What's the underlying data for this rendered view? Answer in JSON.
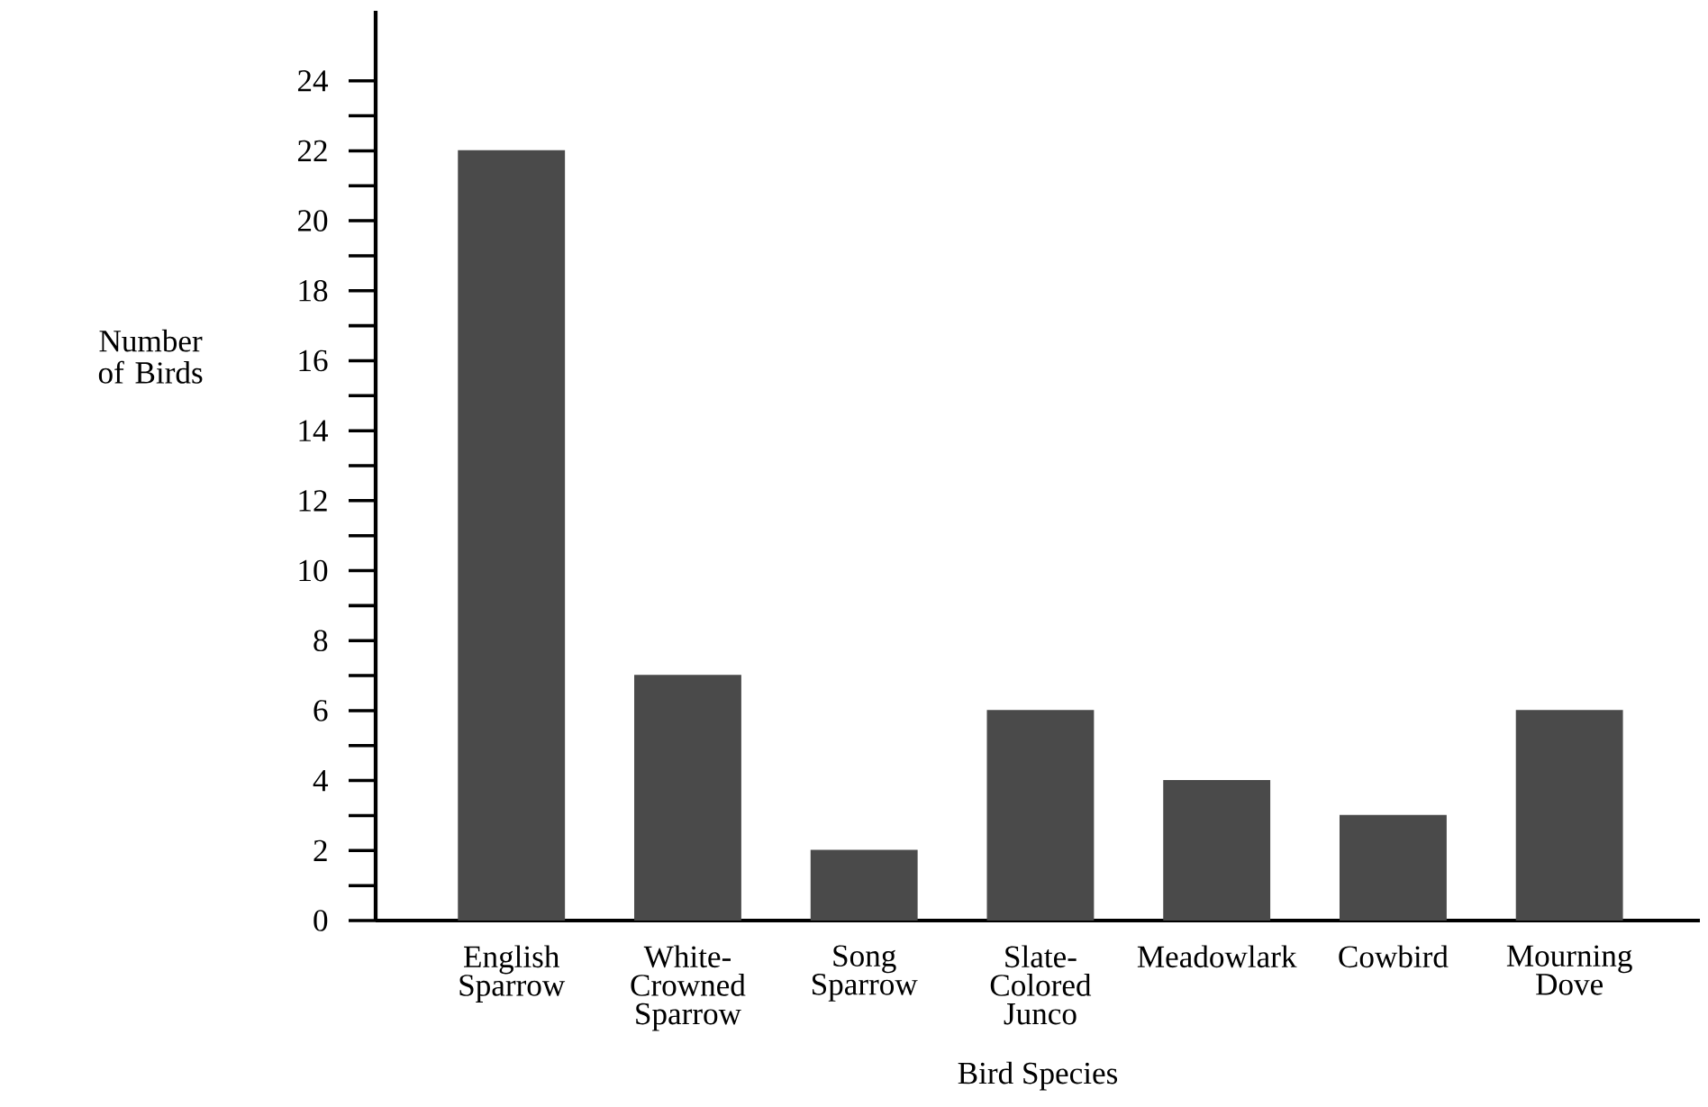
{
  "chart_data": {
    "type": "bar",
    "xlabel": "Bird Species",
    "ylabel": "Number of Birds",
    "categories": [
      "English Sparrow",
      "White-Crowned Sparrow",
      "Song Sparrow",
      "Slate-Colored Junco",
      "Meadowlark",
      "Cowbird",
      "Mourning Dove"
    ],
    "values": [
      22,
      7,
      2,
      6,
      4,
      3,
      6
    ],
    "color": "#4a4a4a",
    "ylim": [
      0,
      26
    ],
    "yticks": [
      0,
      2,
      4,
      6,
      8,
      10,
      12,
      14,
      16,
      18,
      20,
      22,
      24
    ],
    "grid": false
  }
}
